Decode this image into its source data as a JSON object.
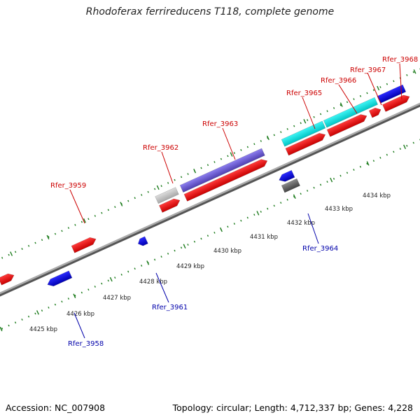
{
  "header": {
    "title": "Rhodoferax ferrireducens T118, complete genome"
  },
  "footer": {
    "accession": "Accession: NC_007908",
    "summary": "Topology: circular; Length: 4,712,337 bp; Genes: 4,228"
  },
  "colors": {
    "forward_gene": "#ff0000",
    "reverse_gene": "#0000ee",
    "rna_gene": "#00e5e5",
    "highlight_gene": "#6a5acd",
    "pseudogene": "#777777",
    "backbone": "#888888",
    "ticks": "#1a7a1a",
    "forward_label": "#cc0000",
    "reverse_label": "#0000aa"
  },
  "kbp_labels": [
    "4425 kbp",
    "4426 kbp",
    "4427 kbp",
    "4428 kbp",
    "4429 kbp",
    "4430 kbp",
    "4431 kbp",
    "4432 kbp",
    "4433 kbp",
    "4434 kbp"
  ],
  "forward_labels": [
    "Rfer_3959",
    "Rfer_3962",
    "Rfer_3963",
    "Rfer_3965",
    "Rfer_3966",
    "Rfer_3967",
    "Rfer_3968"
  ],
  "reverse_labels": [
    "Rfer_3958",
    "Rfer_3961",
    "Rfer_3964"
  ]
}
